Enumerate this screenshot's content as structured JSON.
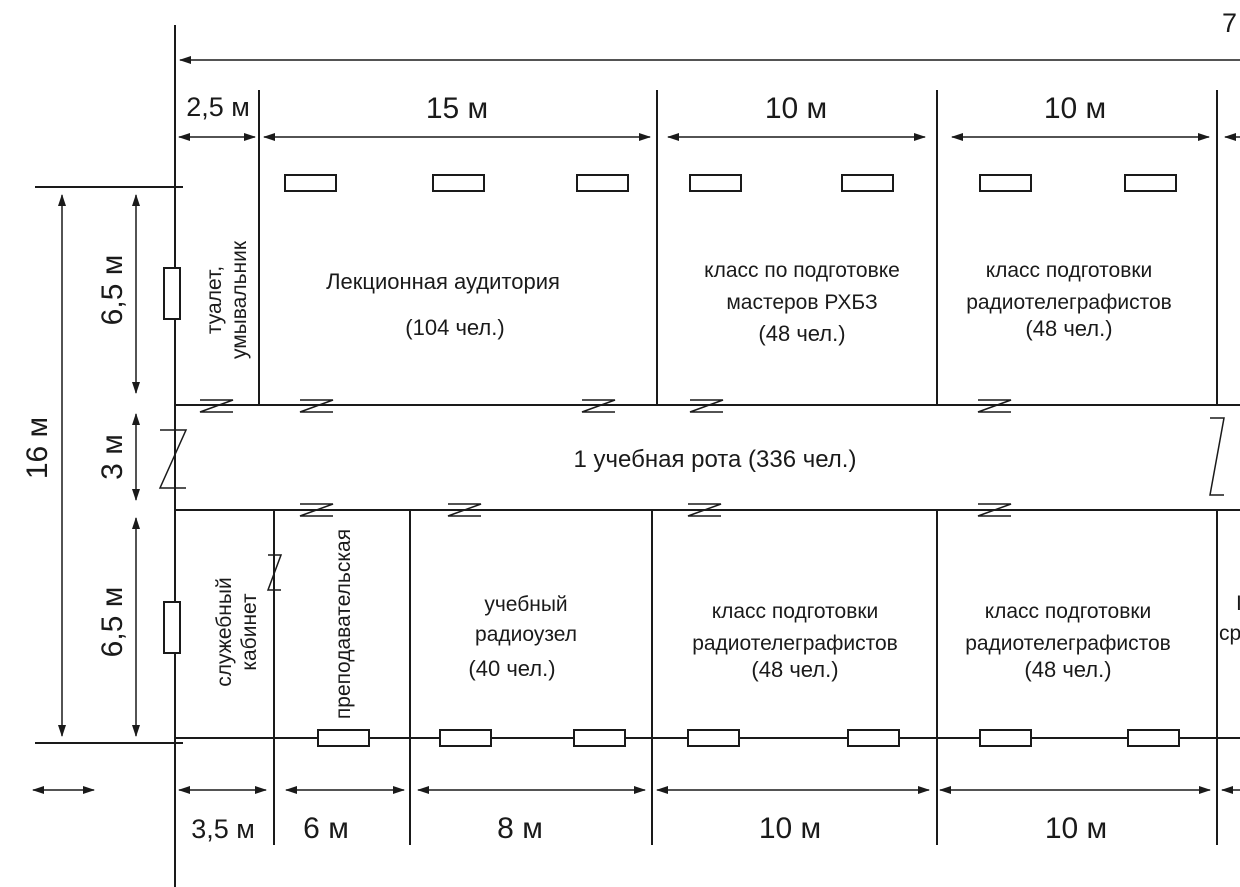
{
  "top_overall_label": "7",
  "top_dims": [
    "2,5 м",
    "15 м",
    "10 м",
    "10 м"
  ],
  "bottom_dims": [
    "3,5 м",
    "6 м",
    "8 м",
    "10 м",
    "10 м"
  ],
  "left_dims": [
    "16 м",
    "6,5 м",
    "3 м",
    "6,5 м"
  ],
  "rooms": {
    "toilet": [
      "туалет,",
      "умывальник"
    ],
    "lecture": [
      "Лекционная аудитория",
      "(104 чел.)"
    ],
    "rhbz_class": [
      "класс по подготовке",
      "мастеров РХБЗ",
      "(48 чел.)"
    ],
    "radio_class_top": [
      "класс подготовки",
      "радиотелеграфистов",
      "(48 чел.)"
    ],
    "office": [
      "служебный",
      "кабинет"
    ],
    "teachers": [
      "преподавательская"
    ],
    "radio_node": [
      "учебный",
      "радиоузел",
      "(40 чел.)"
    ],
    "radio_class_bottom_1": [
      "класс подготовки",
      "радиотелеграфистов",
      "(48 чел.)"
    ],
    "radio_class_bottom_2": [
      "класс подготовки",
      "радиотелеграфистов",
      "(48 чел.)"
    ],
    "cut_room": [
      "I",
      "сре"
    ]
  },
  "corridor_label": "1 учебная рота (336 чел.)"
}
